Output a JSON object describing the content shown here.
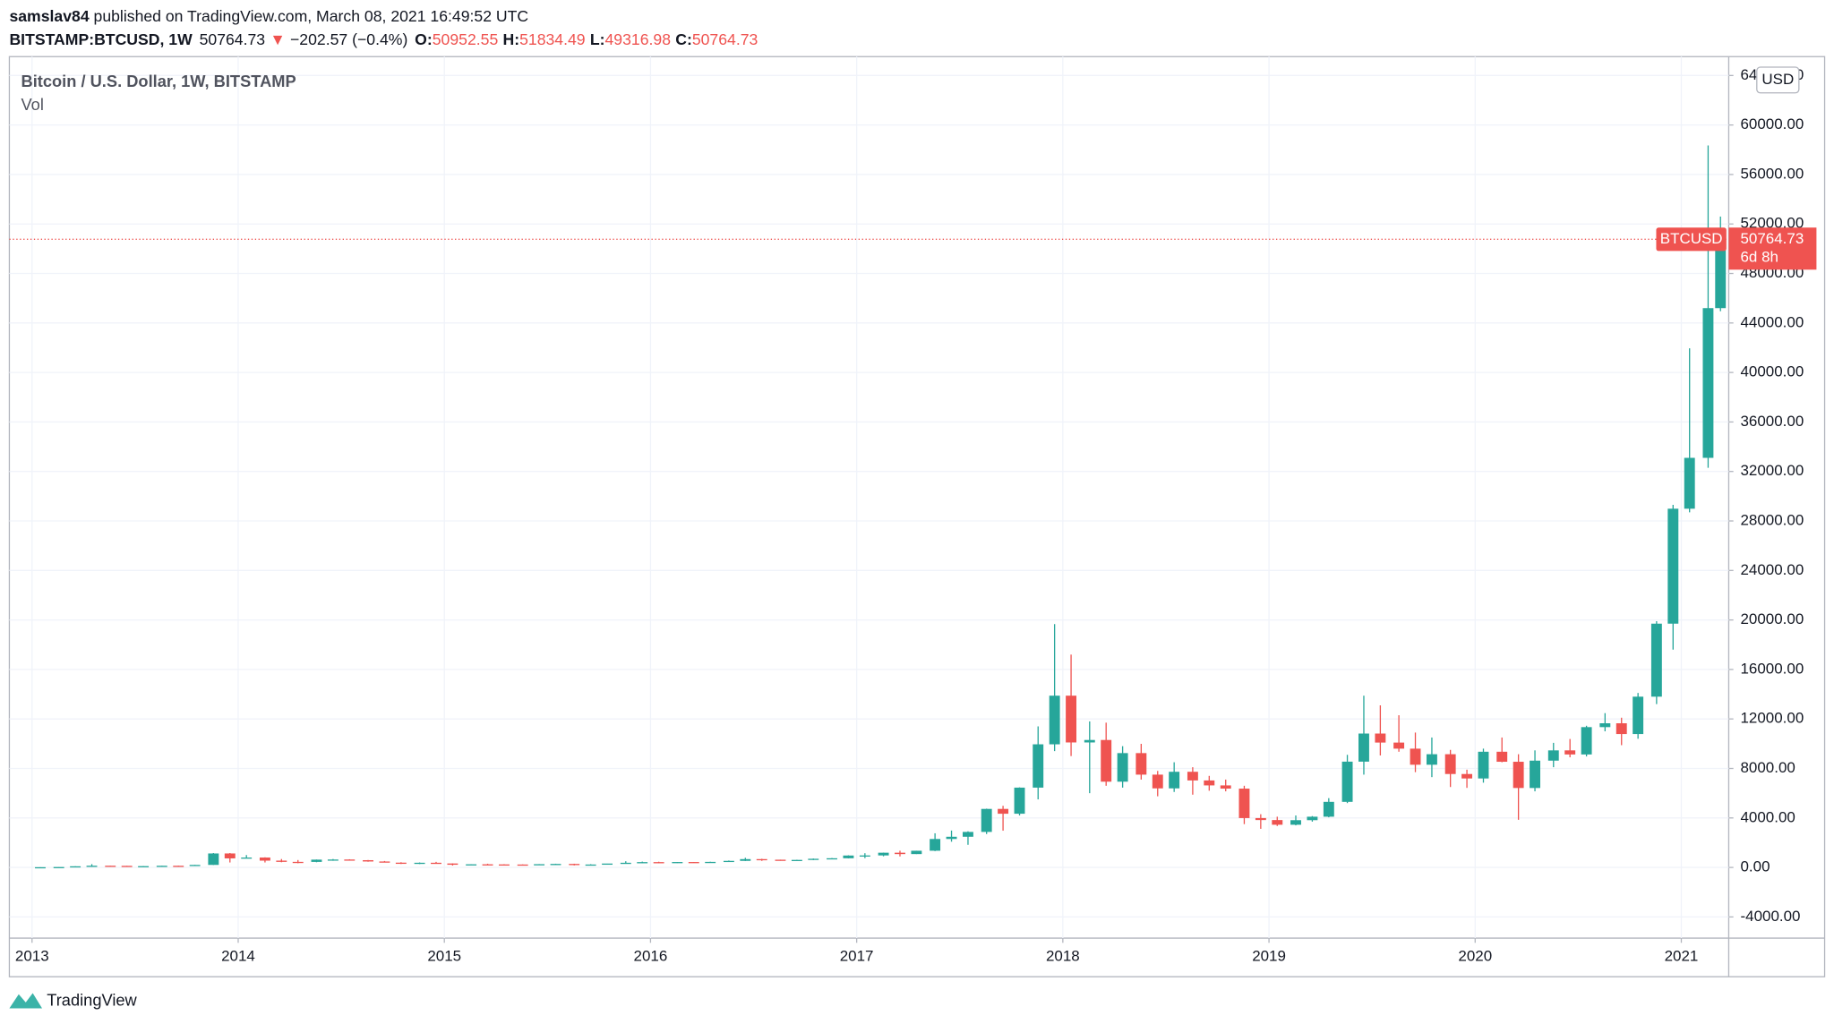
{
  "chart_data": {
    "type": "candlestick",
    "user": "samslav84",
    "published": " published on TradingView.com, March 08, 2021 16:49:52 UTC",
    "symbol": "BITSTAMP:BTCUSD, 1W",
    "last_price": 50764.73,
    "change_arrow": "▼",
    "change": "−202.57 (−0.4%)",
    "ohlc_labels": [
      "O:",
      "H:",
      "L:",
      "C:"
    ],
    "ohlc_values": [
      50952.55,
      51834.49,
      49316.98,
      50764.73
    ],
    "title": "Bitcoin / U.S. Dollar, 1W, BITSTAMP",
    "volume_label": "Vol",
    "currency": "USD",
    "price_tag": "BTCUSD",
    "countdown": "6d 8h",
    "brand": "TradingView",
    "up_color": "#26a69a",
    "down_color": "#ef5350",
    "grid": true,
    "xlim": [
      2012.89,
      2021.23
    ],
    "xticks": [
      2013,
      2014,
      2015,
      2016,
      2017,
      2018,
      2019,
      2020,
      2021
    ],
    "ylim": [
      -5714,
      65524
    ],
    "yticks": [
      {
        "value": -4000,
        "label": "-4000.00"
      },
      {
        "value": 0,
        "label": "0.00"
      },
      {
        "value": 4000,
        "label": "4000.00"
      },
      {
        "value": 8000,
        "label": "8000.00"
      },
      {
        "value": 12000,
        "label": "12000.00"
      },
      {
        "value": 16000,
        "label": "16000.00"
      },
      {
        "value": 20000,
        "label": "20000.00"
      },
      {
        "value": 24000,
        "label": "24000.00"
      },
      {
        "value": 28000,
        "label": "28000.00"
      },
      {
        "value": 32000,
        "label": "32000.00"
      },
      {
        "value": 36000,
        "label": "36000.00"
      },
      {
        "value": 40000,
        "label": "40000.00"
      },
      {
        "value": 44000,
        "label": "44000.00"
      },
      {
        "value": 48000,
        "label": "48000.00"
      },
      {
        "value": 52000,
        "label": "52000.00"
      },
      {
        "value": 56000,
        "label": "56000.00"
      },
      {
        "value": 60000,
        "label": "60000.00"
      },
      {
        "value": 64000,
        "label": "64000.00"
      }
    ],
    "x": [
      2013.04,
      2013.13,
      2013.21,
      2013.29,
      2013.38,
      2013.46,
      2013.54,
      2013.63,
      2013.71,
      2013.79,
      2013.88,
      2013.96,
      2014.04,
      2014.13,
      2014.21,
      2014.29,
      2014.38,
      2014.46,
      2014.54,
      2014.63,
      2014.71,
      2014.79,
      2014.88,
      2014.96,
      2015.04,
      2015.13,
      2015.21,
      2015.29,
      2015.38,
      2015.46,
      2015.54,
      2015.63,
      2015.71,
      2015.79,
      2015.88,
      2015.96,
      2016.04,
      2016.13,
      2016.21,
      2016.29,
      2016.38,
      2016.46,
      2016.54,
      2016.63,
      2016.71,
      2016.79,
      2016.88,
      2016.96,
      2017.04,
      2017.13,
      2017.21,
      2017.29,
      2017.38,
      2017.46,
      2017.54,
      2017.63,
      2017.71,
      2017.79,
      2017.88,
      2017.96,
      2018.04,
      2018.13,
      2018.21,
      2018.29,
      2018.38,
      2018.46,
      2018.54,
      2018.63,
      2018.71,
      2018.79,
      2018.88,
      2018.96,
      2019.04,
      2019.13,
      2019.21,
      2019.29,
      2019.38,
      2019.46,
      2019.54,
      2019.63,
      2019.71,
      2019.79,
      2019.88,
      2019.96,
      2020.04,
      2020.13,
      2020.21,
      2020.29,
      2020.38,
      2020.46,
      2020.54,
      2020.63,
      2020.71,
      2020.79,
      2020.88,
      2020.96,
      2021.04,
      2021.13,
      2021.19
    ],
    "open": [
      13,
      20,
      33,
      93,
      139,
      129,
      97,
      106,
      135,
      133,
      204,
      1130,
      732,
      800,
      550,
      450,
      447,
      630,
      640,
      586,
      480,
      386,
      338,
      378,
      320,
      217,
      254,
      244,
      236,
      230,
      263,
      284,
      230,
      236,
      314,
      377,
      430,
      368,
      437,
      416,
      448,
      531,
      673,
      624,
      575,
      609,
      700,
      742,
      963,
      970,
      1190,
      1080,
      1350,
      2300,
      2480,
      2870,
      4730,
      4340,
      6450,
      9950,
      13880,
      10100,
      10300,
      6930,
      9240,
      7500,
      6390,
      7730,
      7030,
      6630,
      6370,
      3990,
      3830,
      3450,
      3820,
      4100,
      5300,
      8550,
      10820,
      10090,
      9600,
      8300,
      9150,
      7550,
      7190,
      9350,
      8540,
      6420,
      8630,
      9460,
      9130,
      11340,
      11650,
      10780,
      13800,
      19700,
      28990,
      33100,
      45200
    ],
    "high": [
      21,
      34,
      95,
      266,
      140,
      130,
      110,
      137,
      145,
      210,
      1163,
      1163,
      1000,
      820,
      680,
      600,
      640,
      680,
      660,
      600,
      520,
      420,
      400,
      450,
      330,
      260,
      300,
      260,
      245,
      270,
      300,
      300,
      260,
      300,
      502,
      470,
      460,
      440,
      440,
      460,
      560,
      780,
      700,
      630,
      620,
      720,
      760,
      980,
      1150,
      1200,
      1350,
      1350,
      2760,
      2980,
      2920,
      4750,
      4980,
      6470,
      11400,
      19660,
      17200,
      11800,
      11700,
      9800,
      9990,
      7800,
      8500,
      8100,
      7400,
      7100,
      6600,
      4300,
      4100,
      4200,
      4150,
      5600,
      9100,
      13880,
      13100,
      12300,
      10900,
      10500,
      9500,
      7900,
      9600,
      10500,
      9150,
      9460,
      10070,
      10380,
      11450,
      12470,
      12100,
      14100,
      19900,
      29300,
      41950,
      58350,
      52600
    ],
    "low": [
      12,
      20,
      33,
      50,
      85,
      90,
      65,
      100,
      110,
      130,
      200,
      400,
      750,
      400,
      420,
      340,
      420,
      540,
      580,
      460,
      450,
      280,
      275,
      310,
      152,
      200,
      230,
      215,
      225,
      220,
      260,
      162,
      220,
      230,
      310,
      350,
      350,
      360,
      400,
      410,
      440,
      520,
      530,
      540,
      580,
      600,
      690,
      730,
      750,
      900,
      890,
      1080,
      1320,
      2080,
      1830,
      2700,
      2970,
      4200,
      5500,
      9400,
      9000,
      6000,
      6600,
      6450,
      7100,
      5750,
      6100,
      5880,
      6200,
      6150,
      3500,
      3120,
      3350,
      3400,
      3700,
      4050,
      5200,
      7500,
      9050,
      9350,
      7700,
      7300,
      6500,
      6430,
      6850,
      8500,
      3850,
      6150,
      8100,
      8900,
      8970,
      11000,
      9880,
      10400,
      13200,
      17600,
      28700,
      32300,
      44950
    ],
    "close": [
      20,
      33,
      93,
      139,
      129,
      97,
      106,
      135,
      133,
      204,
      1130,
      732,
      800,
      550,
      450,
      447,
      630,
      640,
      586,
      480,
      386,
      338,
      378,
      320,
      217,
      254,
      244,
      236,
      230,
      263,
      284,
      230,
      236,
      314,
      377,
      430,
      368,
      437,
      416,
      448,
      531,
      673,
      624,
      575,
      609,
      700,
      742,
      963,
      970,
      1190,
      1080,
      1350,
      2300,
      2480,
      2870,
      4730,
      4340,
      6450,
      9950,
      13880,
      10100,
      10300,
      6930,
      9240,
      7500,
      6390,
      7730,
      7030,
      6630,
      6370,
      3990,
      3830,
      3450,
      3820,
      4100,
      5300,
      8550,
      10820,
      10090,
      9600,
      8300,
      9150,
      7550,
      7190,
      9350,
      8540,
      6420,
      8630,
      9460,
      9130,
      11340,
      11650,
      10780,
      13800,
      19700,
      28990,
      33100,
      45200,
      50764.73
    ]
  }
}
